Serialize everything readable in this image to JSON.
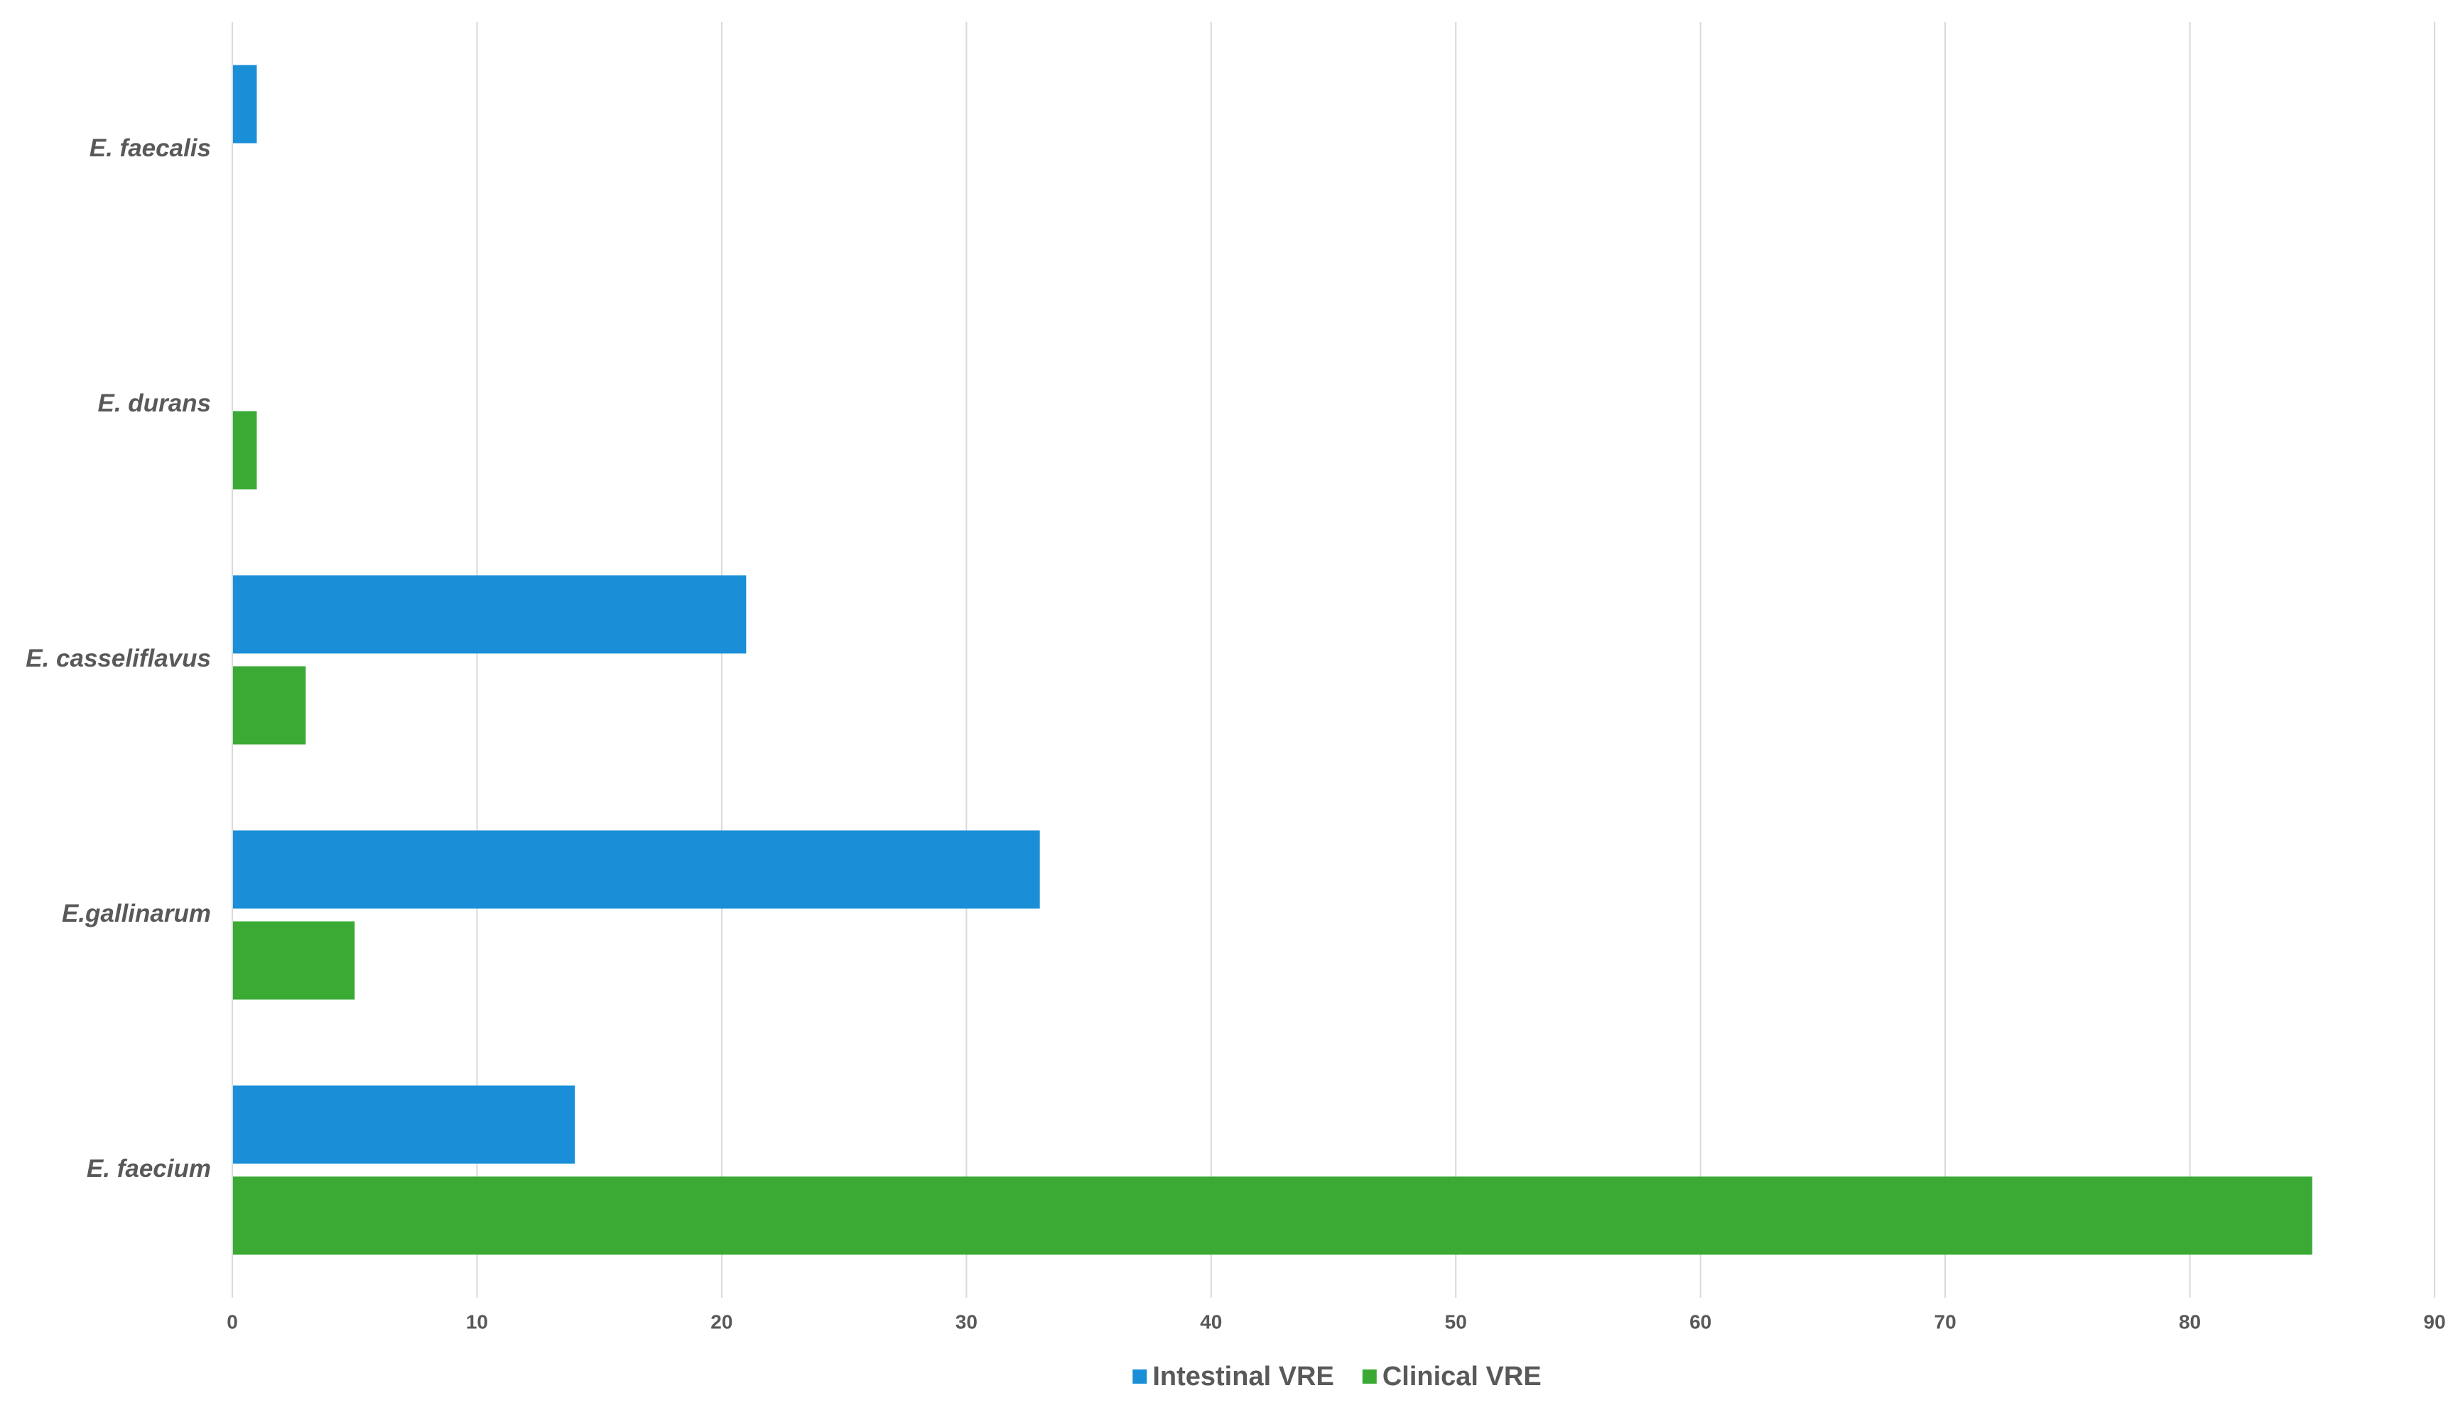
{
  "chart_data": {
    "type": "hbar",
    "categories": [
      "E. faecalis",
      "E. durans",
      "E. casseliflavus",
      "E.gallinarum",
      "E. faecium"
    ],
    "series": [
      {
        "name": "Intestinal VRE",
        "color": "#1a8fd8",
        "values": [
          1,
          0,
          21,
          33,
          14
        ]
      },
      {
        "name": "Clinical VRE",
        "color": "#3aaa35",
        "values": [
          0,
          1,
          3,
          5,
          85
        ]
      }
    ],
    "xlim": [
      0,
      90
    ],
    "xticks": [
      0,
      10,
      20,
      30,
      40,
      50,
      60,
      70,
      80,
      90
    ],
    "grid": true,
    "legend": "bottom"
  }
}
